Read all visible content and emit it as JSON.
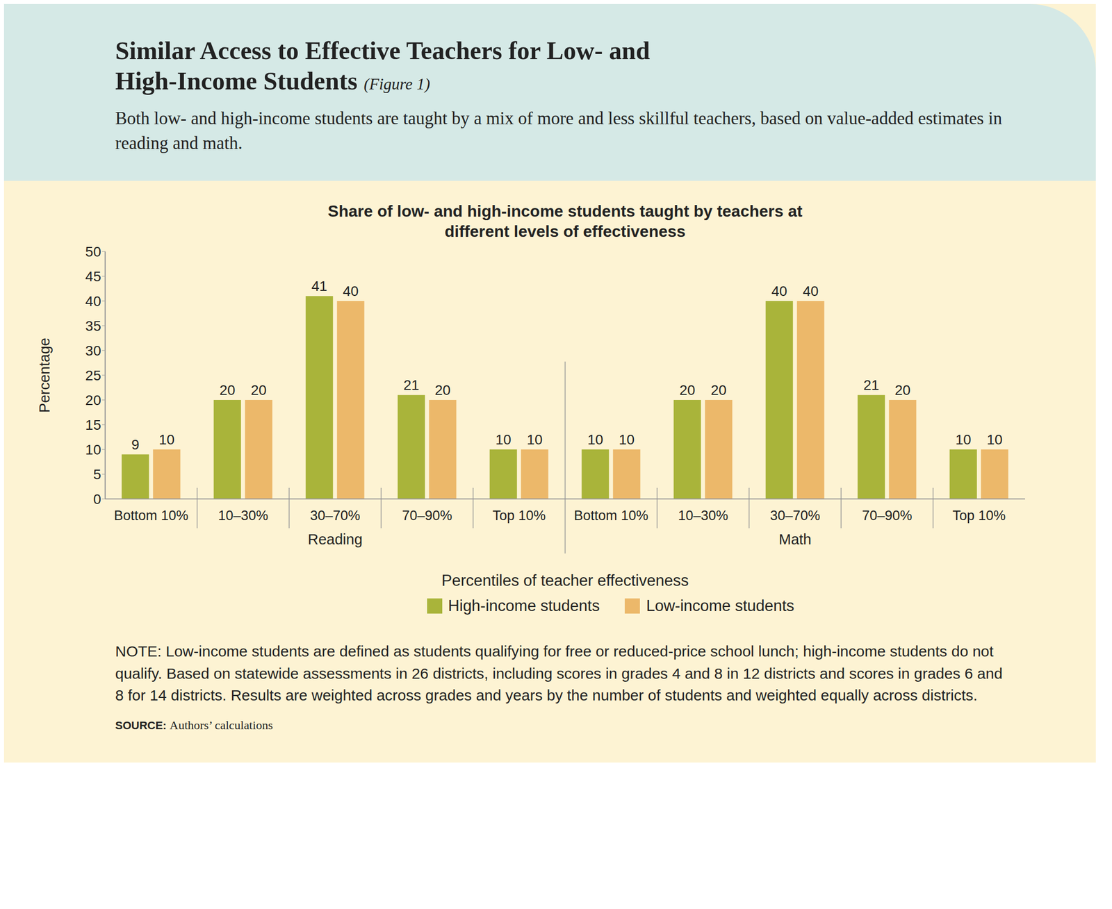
{
  "chart_data": {
    "type": "bar",
    "title": "Similar Access to Effective Teachers for Low- and High-Income Students",
    "title_note": "(Figure 1)",
    "subtitle": "Both low- and high-income students are taught by a mix of more and less skillful teachers, based on value-added estimates in reading and math.",
    "chart_title": "Share of low- and high-income students taught by teachers at different levels of effectiveness",
    "ylabel": "Percentage",
    "xlabel": "Percentiles of teacher effectiveness",
    "categories": [
      "Bottom 10%",
      "10–30%",
      "30–70%",
      "70–90%",
      "Top 10%",
      "Bottom 10%",
      "10–30%",
      "30–70%",
      "70–90%",
      "Top 10%"
    ],
    "groups": [
      "Reading",
      "Math"
    ],
    "series": [
      {
        "name": "High-income students",
        "color": "#a9b43a",
        "values": [
          9,
          20,
          41,
          21,
          10,
          10,
          20,
          40,
          21,
          10
        ]
      },
      {
        "name": "Low-income students",
        "color": "#ecb86a",
        "values": [
          10,
          20,
          40,
          20,
          10,
          10,
          20,
          40,
          20,
          10
        ]
      }
    ],
    "ylim": [
      0,
      50
    ],
    "yticks": [
      0,
      5,
      10,
      15,
      20,
      25,
      30,
      35,
      40,
      45,
      50
    ],
    "grid": false,
    "data_labels": true,
    "legend": "bottom",
    "note": "NOTE: Low-income students are defined as students qualifying for free or reduced-price school lunch; high-income students do not qualify. Based on statewide assessments in 26 districts, including scores in grades 4 and 8 in 12 districts and scores in grades 6 and 8 for 14 districts. Results are weighted across grades and years by the number of students and weighted equally across districts.",
    "source_label": "SOURCE:",
    "source": "Authors’ calculations"
  }
}
